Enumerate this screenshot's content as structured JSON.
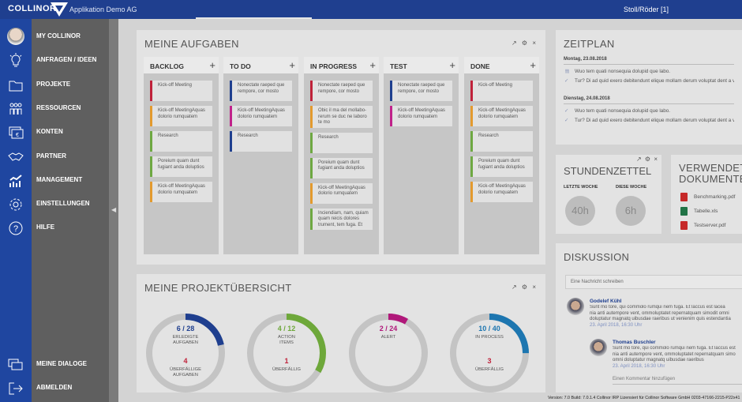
{
  "header": {
    "logo": "COLLINOR",
    "company": "Applikation Demo AG",
    "user": "Stoll/Röder  [1]"
  },
  "sidebar": {
    "items": [
      {
        "label": "MY COLLINOR",
        "icon": "avatar"
      },
      {
        "label": "ANFRAGEN / IDEEN",
        "icon": "lightbulb-icon"
      },
      {
        "label": "PROJEKTE",
        "icon": "folder-icon"
      },
      {
        "label": "RESSOURCEN",
        "icon": "people-icon"
      },
      {
        "label": "KONTEN",
        "icon": "euro-icon"
      },
      {
        "label": "PARTNER",
        "icon": "handshake-icon"
      },
      {
        "label": "MANAGEMENT",
        "icon": "chart-icon"
      },
      {
        "label": "EINSTELLUNGEN",
        "icon": "gear-icon"
      },
      {
        "label": "HILFE",
        "icon": "help-icon"
      }
    ],
    "bottom": [
      {
        "label": "MEINE DIALOGE",
        "icon": "dialogs-icon"
      },
      {
        "label": "ABMELDEN",
        "icon": "logout-icon"
      }
    ]
  },
  "tasks": {
    "title": "MEINE AUFGABEN",
    "columns": [
      {
        "label": "BACKLOG",
        "cards": [
          {
            "text": "Kick-off Meeting",
            "color": "#c0223a"
          },
          {
            "text": "Kick-off MeetingAquas dolorio rumquatem",
            "color": "#e39a2e"
          },
          {
            "text": "Research",
            "color": "#6ea842"
          },
          {
            "text": "Poreium quam dunt fugiant anda doluptios",
            "color": "#6ea842"
          },
          {
            "text": "Kick-off MeetingAquas dolorio rumquatem",
            "color": "#e39a2e"
          }
        ]
      },
      {
        "label": "TO DO",
        "cards": [
          {
            "text": "Nonectate raeped que rempore, cor mosto",
            "color": "#1f3f8f"
          },
          {
            "text": "Kick-off MeetingAquas dolorio rumquatem",
            "color": "#c0228a"
          },
          {
            "text": "Research",
            "color": "#1f3f8f"
          }
        ]
      },
      {
        "label": "IN PROGRESS",
        "cards": [
          {
            "text": "Nonectate raeped que rempore, cor mosto",
            "color": "#c0223a"
          },
          {
            "text": "Obic il ma del mollabo-rerum se duc ne laboro te mo",
            "color": "#e39a2e"
          },
          {
            "text": "Research",
            "color": "#6ea842"
          },
          {
            "text": "Poreium quam dunt fugiant anda doluptios",
            "color": "#6ea842"
          },
          {
            "text": "Kick-off MeetingAquas dolorio rumquatem",
            "color": "#e39a2e"
          },
          {
            "text": "Inciendiam, nam, quiam quam reicis dolores trument, tem fuga. Et",
            "color": "#6ea842"
          }
        ]
      },
      {
        "label": "TEST",
        "cards": [
          {
            "text": "Nonectate raeped que rempore, cor mosto",
            "color": "#1f3f8f"
          },
          {
            "text": "Kick-off MeetingAquas dolorio rumquatem",
            "color": "#c0228a"
          }
        ]
      },
      {
        "label": "DONE",
        "cards": [
          {
            "text": "Kick-off Meeting",
            "color": "#c0223a"
          },
          {
            "text": "Kick-off MeetingAquas dolorio rumquatem",
            "color": "#e39a2e"
          },
          {
            "text": "Research",
            "color": "#6ea842"
          },
          {
            "text": "Poreium quam dunt fugiant anda doluptios",
            "color": "#6ea842"
          },
          {
            "text": "Kick-off MeetingAquas dolorio rumquatem",
            "color": "#e39a2e"
          }
        ]
      }
    ]
  },
  "schedule": {
    "title": "ZEITPLAN",
    "days": [
      {
        "date": "Montag, 23.08.2018",
        "items": [
          {
            "icon": "calendar-icon",
            "text": "Wuo tem quati nonsequia dolupid que labo."
          },
          {
            "icon": "check-icon",
            "text": "Tur? Di ad quid exero debitendunt elique mollam derum voluptat dent a vo-"
          }
        ]
      },
      {
        "date": "Dienstag, 24.08.2018",
        "items": [
          {
            "icon": "check-icon",
            "text": "Wuo tem quati nonsequia dolupid que labo."
          },
          {
            "icon": "check-icon",
            "text": "Tur? Di ad quid exero debitendunt elique mollam derum voluptat dent a vo-"
          }
        ]
      }
    ]
  },
  "timesheet": {
    "title": "STUNDENZETTEL",
    "last_week_label": "LETZTE WOCHE",
    "last_week": "40h",
    "this_week_label": "DIESE WOCHE",
    "this_week": "6h"
  },
  "documents": {
    "title_1": "VERWENDETE",
    "title_2": "DOKUMENTE",
    "files": [
      {
        "name": "Benchmarking.pdf",
        "type": "pdf"
      },
      {
        "name": "Tabelle.xls",
        "type": "xls"
      },
      {
        "name": "Testserver.pdf",
        "type": "pdf"
      }
    ]
  },
  "discussion": {
    "title": "DISKUSSION",
    "placeholder": "Eine Nachricht schreiben",
    "comments": [
      {
        "author": "Godelef Kühl",
        "lines": [
          "Sunt mo tore, qui commolo rumqui nem fuga. Et laccus est lacea",
          "nia anti autempore vent, ommoluptatet repernatquam simodit omni",
          "doluptatur magnatq uibusdae raeribus ut venienim quis estendantia"
        ],
        "date": "23. April 2018, 16:30 Uhr"
      },
      {
        "author": "Thomas Buschler",
        "lines": [
          "Sunt mo tore, qui commolo rumqui nem fuga. Et laccus est",
          "nia anti autempore vent, ommoluptatet repernatquam simo",
          "omni doluptatur magnatq uibusdae raeribus"
        ],
        "date": "23. April 2018, 16:30 Uhr"
      }
    ],
    "reply_placeholder": "Einen Kommentar hinzufügen"
  },
  "overview": {
    "title": "MEINE PROJEKTÜBERSICHT",
    "donuts": [
      {
        "value": "6 / 28",
        "done": 6,
        "total": 28,
        "label_1": "ERLEDIGTE",
        "label_2": "AUFGABEN",
        "overdue": "4",
        "overdue_1": "ÜBERFÄLLIGE",
        "overdue_2": "AUFGABEN",
        "color": "#1f3f8f"
      },
      {
        "value": "4 / 12",
        "done": 4,
        "total": 12,
        "label_1": "ACTION",
        "label_2": "ITEMS",
        "overdue": "1",
        "overdue_1": "ÜBERFÄLLIG",
        "overdue_2": "",
        "color": "#6ea83a"
      },
      {
        "value": "2 / 24",
        "done": 2,
        "total": 24,
        "label_1": "ALERT",
        "label_2": "",
        "overdue": "",
        "overdue_1": "",
        "overdue_2": "",
        "color": "#b0187a"
      },
      {
        "value": "10 / 40",
        "done": 10,
        "total": 40,
        "label_1": "IN PROCESS",
        "label_2": "",
        "overdue": "3",
        "overdue_1": "ÜBERFÄLLIG",
        "overdue_2": "",
        "color": "#1d76b0"
      }
    ]
  },
  "footer": "Version: 7.0 Build: 7.0.1.4 Collinor IRP Lizensiert für Collinor Software GmbH 0203-47166-2215-P22x41",
  "panel_controls": "↗ ⚙ ×"
}
